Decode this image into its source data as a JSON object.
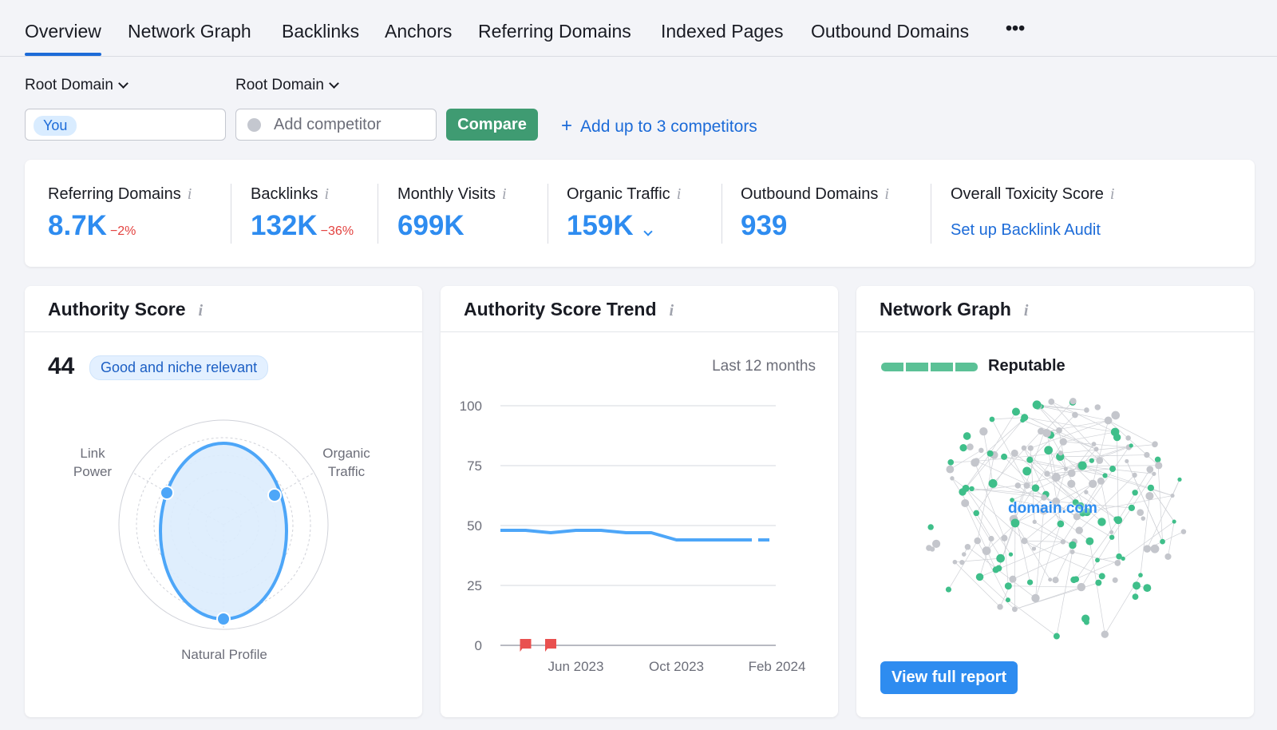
{
  "tabs": [
    "Overview",
    "Network Graph",
    "Backlinks",
    "Anchors",
    "Referring Domains",
    "Indexed Pages",
    "Outbound Domains",
    "•••"
  ],
  "filters": {
    "select1": "Root Domain",
    "select2": "Root Domain",
    "you_chip": "You",
    "competitor_placeholder": "Add competitor",
    "compare": "Compare",
    "add_competitors": "Add up to 3 competitors",
    "add_icon": "plus-icon"
  },
  "metrics": [
    {
      "label": "Referring Domains",
      "value": "8.7K",
      "delta": "−2%"
    },
    {
      "label": "Backlinks",
      "value": "132K",
      "delta": "−36%"
    },
    {
      "label": "Monthly Visits",
      "value": "699K"
    },
    {
      "label": "Organic Traffic",
      "value": "159K"
    },
    {
      "label": "Outbound Domains",
      "value": "939"
    },
    {
      "label": "Overall Toxicity Score",
      "link": "Set up Backlink Audit"
    }
  ],
  "authority": {
    "title": "Authority Score",
    "score": "44",
    "badge": "Good and niche relevant",
    "axes": [
      "Link Power",
      "Organic Traffic",
      "Natural Profile"
    ]
  },
  "trend": {
    "title": "Authority Score Trend",
    "period": "Last 12 months"
  },
  "chart_data": {
    "type": "line",
    "x": [
      "Mar 2023",
      "Apr 2023",
      "May 2023",
      "Jun 2023",
      "Jul 2023",
      "Aug 2023",
      "Sep 2023",
      "Oct 2023",
      "Nov 2023",
      "Dec 2023",
      "Jan 2024",
      "Feb 2024"
    ],
    "values": [
      48,
      48,
      47,
      48,
      48,
      47,
      47,
      44,
      44,
      44,
      44,
      44
    ],
    "ylim": [
      0,
      100
    ],
    "yticks": [
      0,
      25,
      50,
      75,
      100
    ],
    "xtick_labels": [
      "Jun 2023",
      "Oct 2023",
      "Feb 2024"
    ],
    "markers": [
      "Apr 2023",
      "May 2023"
    ],
    "color": "#4da6f8",
    "grid": true
  },
  "network": {
    "title": "Network Graph",
    "status": "Reputable",
    "status_level": 1.0,
    "center_label": "domain.com",
    "button": "View full report"
  },
  "colors": {
    "accent": "#1c6bd8",
    "value": "#2e8cf0",
    "green": "#3f9b72",
    "negative": "#e3423f"
  }
}
